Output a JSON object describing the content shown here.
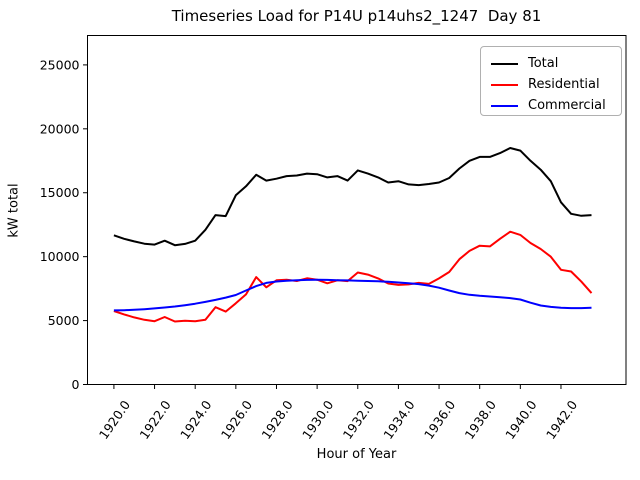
{
  "chart_data": {
    "type": "line",
    "title": "Timeseries Load for P14U p14uhs2_1247  Day 81",
    "xlabel": "Hour of Year",
    "ylabel": "kW total",
    "xlim": [
      1918.7,
      1945.2
    ],
    "ylim": [
      0,
      27300
    ],
    "grid": false,
    "legend_position": "upper right",
    "x_ticks": [
      1920,
      1922,
      1924,
      1926,
      1928,
      1930,
      1932,
      1934,
      1936,
      1938,
      1940,
      1942
    ],
    "x_tick_labels": [
      "1920.0",
      "1922.0",
      "1924.0",
      "1926.0",
      "1928.0",
      "1930.0",
      "1932.0",
      "1934.0",
      "1936.0",
      "1938.0",
      "1940.0",
      "1942.0"
    ],
    "y_ticks": [
      0,
      5000,
      10000,
      15000,
      20000,
      25000
    ],
    "y_tick_labels": [
      "0",
      "5000",
      "10000",
      "15000",
      "20000",
      "25000"
    ],
    "x": [
      1920.0,
      1920.5,
      1921.0,
      1921.5,
      1922.0,
      1922.5,
      1923.0,
      1923.5,
      1924.0,
      1924.5,
      1925.0,
      1925.5,
      1926.0,
      1926.5,
      1927.0,
      1927.5,
      1928.0,
      1928.5,
      1929.0,
      1929.5,
      1930.0,
      1930.5,
      1931.0,
      1931.5,
      1932.0,
      1932.5,
      1933.0,
      1933.5,
      1934.0,
      1934.5,
      1935.0,
      1935.5,
      1936.0,
      1936.5,
      1937.0,
      1937.5,
      1938.0,
      1938.5,
      1939.0,
      1939.5,
      1940.0,
      1940.5,
      1941.0,
      1941.5,
      1942.0,
      1942.5,
      1943.0,
      1943.5
    ],
    "series": [
      {
        "name": "Total",
        "color": "#000000",
        "values": [
          11670,
          11400,
          11190,
          11010,
          10940,
          11250,
          10900,
          11000,
          11250,
          12100,
          13250,
          13170,
          14800,
          15500,
          16400,
          15950,
          16100,
          16300,
          16350,
          16500,
          16450,
          16200,
          16300,
          15950,
          16750,
          16500,
          16200,
          15800,
          15900,
          15650,
          15600,
          15680,
          15800,
          16150,
          16900,
          17500,
          17800,
          17800,
          18100,
          18500,
          18300,
          17500,
          16800,
          15900,
          14250,
          13350,
          13200,
          13250
        ]
      },
      {
        "name": "Residential",
        "color": "#ff0000",
        "values": [
          5750,
          5480,
          5250,
          5060,
          4950,
          5280,
          4930,
          4990,
          4950,
          5060,
          6050,
          5700,
          6350,
          7050,
          8400,
          7600,
          8150,
          8200,
          8100,
          8310,
          8200,
          7920,
          8150,
          8090,
          8760,
          8600,
          8300,
          7900,
          7790,
          7830,
          7950,
          7870,
          8300,
          8800,
          9800,
          10450,
          10860,
          10800,
          11400,
          11950,
          11700,
          11070,
          10600,
          10000,
          8970,
          8840,
          8050,
          7150
        ]
      },
      {
        "name": "Commercial",
        "color": "#0000ff",
        "values": [
          5800,
          5810,
          5840,
          5890,
          5950,
          6020,
          6100,
          6200,
          6320,
          6460,
          6620,
          6800,
          7000,
          7350,
          7700,
          7950,
          8060,
          8120,
          8160,
          8180,
          8190,
          8180,
          8160,
          8140,
          8120,
          8100,
          8070,
          8030,
          7980,
          7920,
          7850,
          7740,
          7570,
          7350,
          7150,
          7020,
          6940,
          6880,
          6820,
          6760,
          6650,
          6400,
          6180,
          6070,
          6010,
          5980,
          5980,
          6010
        ]
      }
    ]
  }
}
